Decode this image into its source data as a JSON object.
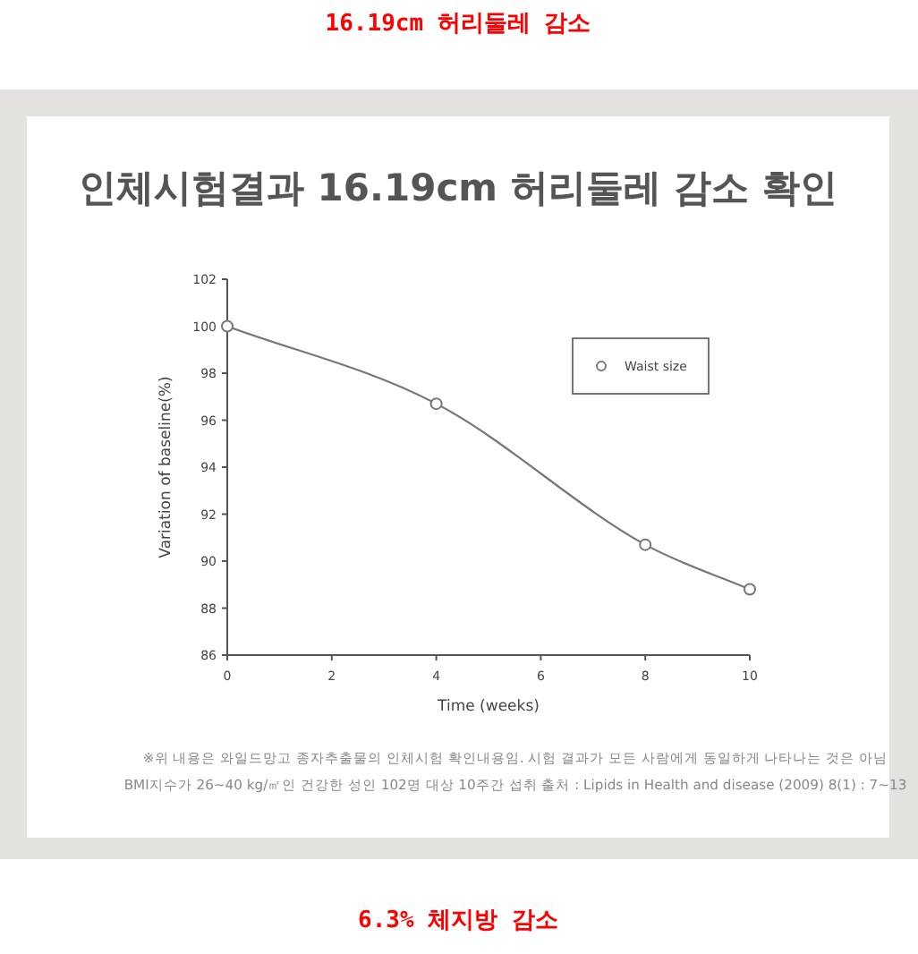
{
  "chart_data": {
    "type": "line",
    "title": "인체시험결과 16.19cm 허리둘레 감소 확인",
    "xlabel": "Time (weeks)",
    "ylabel": "Variation of baseline(%)",
    "x": [
      0,
      4,
      8,
      10
    ],
    "series": [
      {
        "name": "Waist size",
        "color": "#777777",
        "values": [
          100,
          96.7,
          90.7,
          88.8
        ]
      }
    ],
    "xlim": [
      0,
      10
    ],
    "xticks": [
      0,
      2,
      4,
      6,
      8,
      10
    ],
    "ylim": [
      86,
      102
    ],
    "yticks": [
      86,
      88,
      90,
      92,
      94,
      96,
      98,
      100,
      102
    ],
    "marker": "circle",
    "line_style": "solid",
    "grid": false,
    "legend": "top right",
    "annotations": [
      "16.19cm 허리둘레 감소",
      "※위 내용은 와일드망고 종자추출물의 인체시험 확인내용임. 시험 결과가 모든 사람에게 동일하게 나타나는 것은 아님",
      "BMI지수가 26~40 kg/㎡인 건강한 성인 102명 대상 10주간 섭취  출처 : Lipids in Health and disease (2009) 8(1) : 7~13",
      "6.3% 체지방 감소"
    ]
  }
}
